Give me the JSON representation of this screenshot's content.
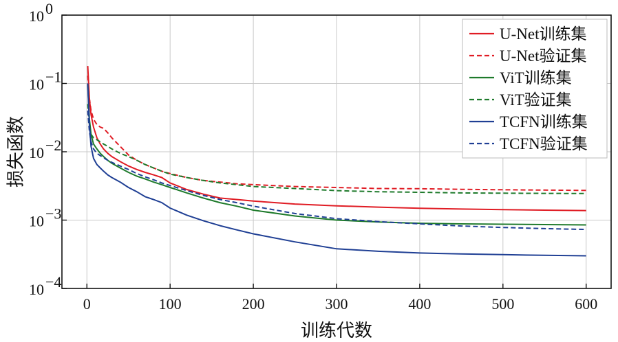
{
  "chart_data": {
    "type": "line",
    "xlabel": "训练代数",
    "ylabel": "损失函数",
    "xscale": "linear",
    "yscale": "log",
    "xlim": [
      -30,
      630
    ],
    "ylim": [
      0.0001,
      1
    ],
    "x_ticks": [
      0,
      100,
      200,
      300,
      400,
      500,
      600
    ],
    "y_ticks": [
      {
        "value": 1,
        "base": "10",
        "exp": "0"
      },
      {
        "value": 0.1,
        "base": "10",
        "exp": "−1"
      },
      {
        "value": 0.01,
        "base": "10",
        "exp": "−2"
      },
      {
        "value": 0.001,
        "base": "10",
        "exp": "−3"
      },
      {
        "value": 0.0001,
        "base": "10",
        "exp": "−4"
      }
    ],
    "grid": true,
    "legend_position": "top-right",
    "series": [
      {
        "name": "U-Net训练集",
        "color": "#e01c24",
        "dash": "solid",
        "x": [
          1,
          3,
          5,
          8,
          12,
          16,
          20,
          25,
          30,
          40,
          50,
          60,
          70,
          80,
          90,
          100,
          120,
          140,
          160,
          180,
          200,
          250,
          300,
          350,
          400,
          450,
          500,
          550,
          600
        ],
        "y": [
          0.18,
          0.06,
          0.035,
          0.023,
          0.016,
          0.013,
          0.011,
          0.0095,
          0.0085,
          0.0072,
          0.0062,
          0.0055,
          0.005,
          0.0046,
          0.0042,
          0.0035,
          0.0028,
          0.0024,
          0.0021,
          0.002,
          0.0019,
          0.00172,
          0.00162,
          0.00155,
          0.00149,
          0.00145,
          0.00142,
          0.0014,
          0.00138
        ]
      },
      {
        "name": "U-Net验证集",
        "color": "#e01c24",
        "dash": "dashed",
        "x": [
          1,
          3,
          5,
          8,
          12,
          16,
          20,
          25,
          30,
          40,
          50,
          60,
          70,
          80,
          90,
          100,
          120,
          140,
          160,
          180,
          200,
          250,
          300,
          350,
          400,
          450,
          500,
          550,
          600
        ],
        "y": [
          0.13,
          0.06,
          0.04,
          0.03,
          0.025,
          0.023,
          0.022,
          0.019,
          0.016,
          0.012,
          0.009,
          0.0075,
          0.0065,
          0.0058,
          0.0052,
          0.0048,
          0.0042,
          0.0038,
          0.0036,
          0.0034,
          0.0033,
          0.0031,
          0.003,
          0.0029,
          0.00288,
          0.00282,
          0.00278,
          0.00275,
          0.00272
        ]
      },
      {
        "name": "ViT训练集",
        "color": "#1e7a2b",
        "dash": "solid",
        "x": [
          1,
          3,
          5,
          8,
          12,
          16,
          20,
          25,
          30,
          40,
          50,
          60,
          70,
          80,
          90,
          100,
          120,
          140,
          160,
          180,
          200,
          250,
          300,
          350,
          400,
          450,
          500,
          550,
          600
        ],
        "y": [
          0.1,
          0.03,
          0.018,
          0.013,
          0.011,
          0.0095,
          0.0085,
          0.0075,
          0.0068,
          0.0058,
          0.005,
          0.0044,
          0.004,
          0.0036,
          0.0033,
          0.003,
          0.0025,
          0.0021,
          0.0018,
          0.0016,
          0.0014,
          0.00115,
          0.001,
          0.00094,
          0.0009,
          0.00088,
          0.00087,
          0.00086,
          0.00085
        ]
      },
      {
        "name": "ViT验证集",
        "color": "#1e7a2b",
        "dash": "dashed",
        "x": [
          1,
          3,
          5,
          8,
          12,
          16,
          20,
          25,
          30,
          40,
          50,
          60,
          70,
          80,
          90,
          100,
          120,
          140,
          160,
          180,
          200,
          250,
          300,
          350,
          400,
          450,
          500,
          550,
          600
        ],
        "y": [
          0.05,
          0.025,
          0.018,
          0.016,
          0.015,
          0.014,
          0.013,
          0.012,
          0.011,
          0.0095,
          0.0085,
          0.0075,
          0.0065,
          0.0058,
          0.0052,
          0.0047,
          0.0042,
          0.0038,
          0.0035,
          0.0033,
          0.0031,
          0.0029,
          0.0027,
          0.0026,
          0.00255,
          0.0025,
          0.00248,
          0.00246,
          0.00245
        ]
      },
      {
        "name": "TCFN训练集",
        "color": "#1f3f94",
        "dash": "solid",
        "x": [
          1,
          3,
          5,
          8,
          12,
          16,
          20,
          25,
          30,
          40,
          50,
          60,
          70,
          80,
          90,
          100,
          120,
          140,
          160,
          180,
          200,
          250,
          300,
          350,
          400,
          450,
          500,
          550,
          600
        ],
        "y": [
          0.1,
          0.025,
          0.012,
          0.008,
          0.0065,
          0.0058,
          0.0052,
          0.0046,
          0.0042,
          0.0036,
          0.003,
          0.0026,
          0.0022,
          0.002,
          0.0018,
          0.0015,
          0.00118,
          0.00098,
          0.00083,
          0.00072,
          0.00063,
          0.00048,
          0.00038,
          0.00035,
          0.00033,
          0.00032,
          0.000312,
          0.000305,
          0.0003
        ]
      },
      {
        "name": "TCFN验证集",
        "color": "#1f3f94",
        "dash": "dashed",
        "x": [
          1,
          3,
          5,
          8,
          12,
          16,
          20,
          25,
          30,
          40,
          50,
          60,
          70,
          80,
          90,
          100,
          120,
          140,
          160,
          180,
          200,
          250,
          300,
          350,
          400,
          450,
          500,
          550,
          600
        ],
        "y": [
          0.04,
          0.02,
          0.014,
          0.011,
          0.0095,
          0.0088,
          0.0082,
          0.0075,
          0.007,
          0.0062,
          0.0055,
          0.0048,
          0.0043,
          0.0039,
          0.0035,
          0.0032,
          0.0027,
          0.0023,
          0.002,
          0.0018,
          0.0016,
          0.00125,
          0.00105,
          0.00095,
          0.00088,
          0.00082,
          0.00078,
          0.00075,
          0.00073
        ]
      }
    ]
  }
}
